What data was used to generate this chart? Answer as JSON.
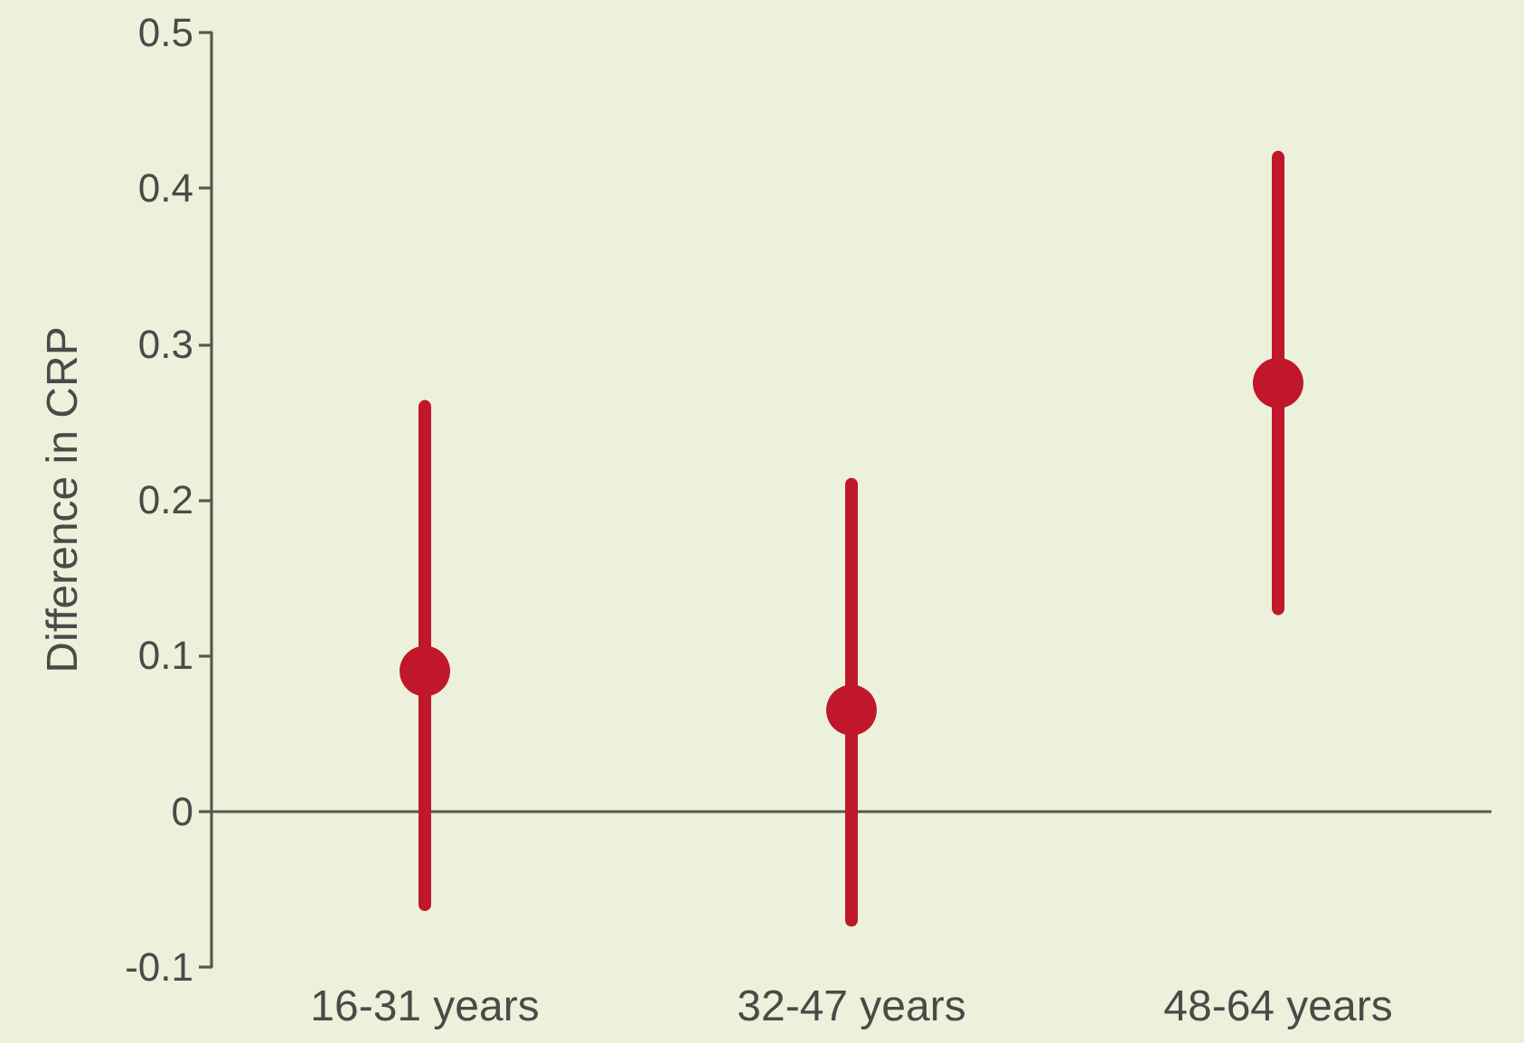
{
  "chart_data": {
    "type": "scatter",
    "ylabel": "Difference in CRP",
    "categories": [
      "16-31 years",
      "32-47 years",
      "48-64 years"
    ],
    "values": [
      0.09,
      0.065,
      0.275
    ],
    "errors": [
      [
        -0.06,
        0.26
      ],
      [
        -0.07,
        0.21
      ],
      [
        0.13,
        0.42
      ]
    ],
    "color": "#c0172a",
    "ylim": [
      -0.1,
      0.5
    ],
    "yticks": [
      -0.1,
      0,
      0.1,
      0.2,
      0.3,
      0.4,
      0.5
    ],
    "ref_lines": [
      {
        "axis": "y",
        "value": 0,
        "color": "#555a4c"
      }
    ],
    "marker": "circle"
  }
}
